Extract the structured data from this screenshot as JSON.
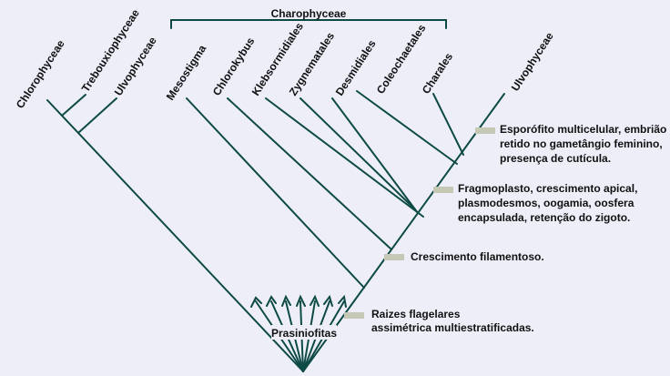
{
  "group_label": "Charophyceae",
  "taxa": [
    "Chlorophyceae",
    "Trebouxiophyceae",
    "Ulvophyceae",
    "Mesostigma",
    "Chlorokybus",
    "Klebsormidiales",
    "Zygnematales",
    "Desmidiales",
    "Coleochaetales",
    "Charales",
    "Ulvophyceae"
  ],
  "root_label": "Prasiniofitas",
  "annotations": [
    [
      "Esporófito multicelular, embrião",
      "retido no gametângio feminino,",
      "presença de cutícula."
    ],
    [
      "Fragmoplasto, crescimento apical,",
      "plasmodesmos, oogamia, oosfera",
      "encapsulada, retenção do zigoto."
    ],
    [
      "Crescimento filamentoso."
    ],
    [
      "Raizes flagelares",
      "assimétrica multiestratificadas."
    ]
  ],
  "colors": {
    "background": "#edeef8",
    "branch": "#0e4a45",
    "marker": "#c4c8b4",
    "text": "#111111"
  }
}
